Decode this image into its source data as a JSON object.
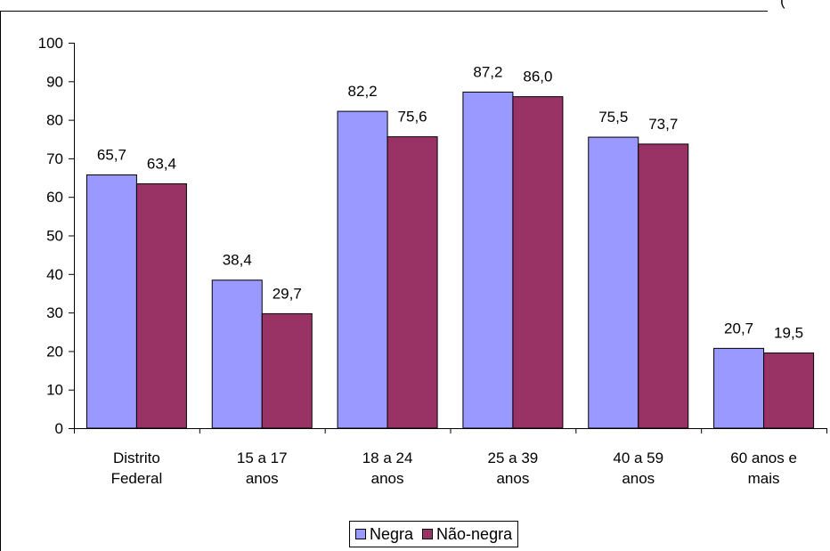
{
  "colors": {
    "negra": "#9999ff",
    "nao_negra": "#993366",
    "axis": "#000000",
    "background": "#ffffff"
  },
  "corner_mark": "(",
  "legend": {
    "items": [
      {
        "label": "Negra",
        "color": "#9999ff"
      },
      {
        "label": "Não-negra",
        "color": "#993366"
      }
    ],
    "placement": "bottom"
  },
  "chart_data": {
    "type": "bar",
    "title": "",
    "xlabel": "",
    "ylabel": "",
    "ylim": [
      0,
      100
    ],
    "yticks": [
      "0",
      "10",
      "20",
      "30",
      "40",
      "50",
      "60",
      "70",
      "80",
      "90",
      "100"
    ],
    "grid": false,
    "legend_placement": "bottom",
    "categories": [
      [
        "Distrito",
        "Federal"
      ],
      [
        "15 a 17",
        "anos"
      ],
      [
        "18 a 24",
        "anos"
      ],
      [
        "25 a 39",
        "anos"
      ],
      [
        "40 a 59",
        "anos"
      ],
      [
        "60 anos e",
        "mais"
      ]
    ],
    "series": [
      {
        "name": "Negra",
        "color": "#9999ff",
        "values": [
          65.7,
          38.4,
          82.2,
          87.2,
          75.5,
          20.7
        ],
        "labels": [
          "65,7",
          "38,4",
          "82,2",
          "87,2",
          "75,5",
          "20,7"
        ]
      },
      {
        "name": "Não-negra",
        "color": "#993366",
        "values": [
          63.4,
          29.7,
          75.6,
          86.0,
          73.7,
          19.5
        ],
        "labels": [
          "63,4",
          "29,7",
          "75,6",
          "86,0",
          "73,7",
          "19,5"
        ]
      }
    ]
  }
}
